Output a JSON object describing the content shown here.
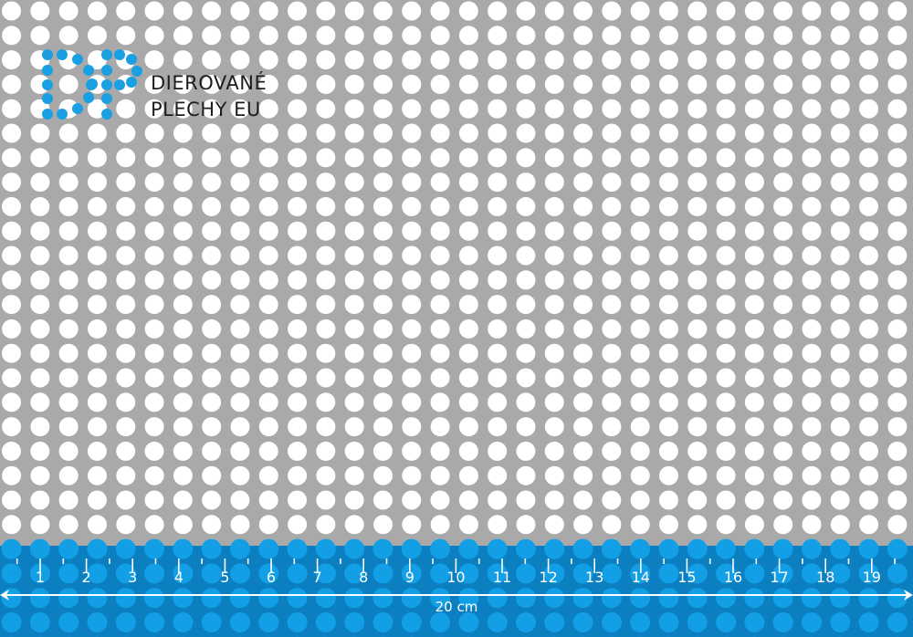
{
  "logo": {
    "monogram": "DP",
    "line1": "DIEROVANÉ",
    "line2": "PLECHY EU",
    "color": "#1a9fe3"
  },
  "sheet": {
    "metal_color": "#a9a9a9",
    "hole_color": "#ffffff"
  },
  "ruler": {
    "band_color": "#0b7fc0",
    "hole_color": "#139fe6",
    "labels": [
      "1",
      "2",
      "3",
      "4",
      "5",
      "6",
      "7",
      "8",
      "9",
      "10",
      "11",
      "12",
      "13",
      "14",
      "15",
      "16",
      "17",
      "18",
      "19"
    ],
    "length_label": "20 cm"
  }
}
